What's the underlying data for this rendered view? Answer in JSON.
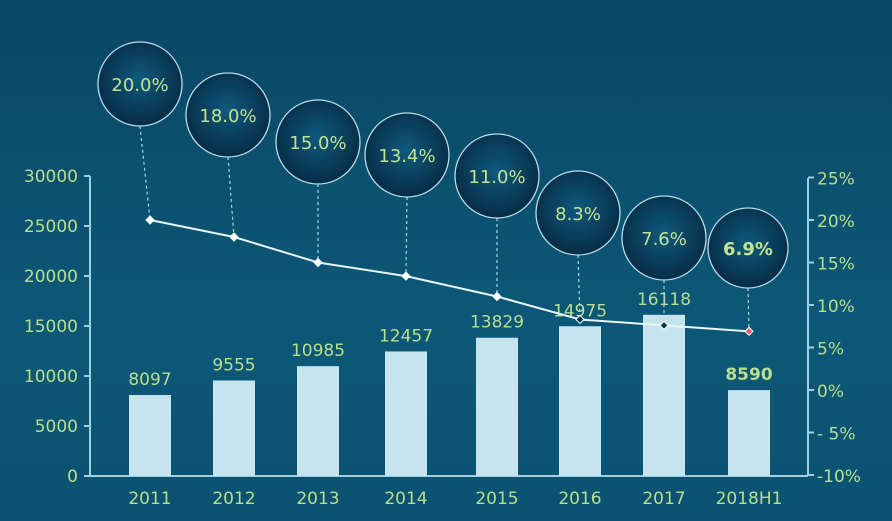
{
  "chart_data": {
    "type": "bar+line",
    "categories": [
      "2011",
      "2012",
      "2013",
      "2014",
      "2015",
      "2016",
      "2017",
      "2018H1"
    ],
    "series": [
      {
        "axis": "left",
        "type": "bar",
        "values": [
          8097,
          9555,
          10985,
          12457,
          13829,
          14975,
          16118,
          8590
        ],
        "labels": [
          "8097",
          "9555",
          "10985",
          "12457",
          "13829",
          "14975",
          "16118",
          "8590"
        ]
      },
      {
        "axis": "right",
        "type": "line",
        "values": [
          20.0,
          18.0,
          15.0,
          13.4,
          11.0,
          8.3,
          7.6,
          6.9
        ],
        "labels": [
          "20.0%",
          "18.0%",
          "15.0%",
          "13.4%",
          "11.0%",
          "8.3%",
          "7.6%",
          "6.9%"
        ]
      }
    ],
    "left_axis": {
      "ylim": [
        0,
        30000
      ],
      "ticks": [
        "0",
        "5000",
        "10000",
        "15000",
        "20000",
        "25000",
        "30000"
      ]
    },
    "right_axis": {
      "ylim": [
        -10,
        25
      ],
      "ticks": [
        "-10%",
        "- 5%",
        "0%",
        "5%",
        "10%",
        "15%",
        "20%",
        "25%"
      ]
    },
    "highlight_last": true,
    "grid": false,
    "colors": {
      "background": "#0b5070",
      "bar": "#c6e4ee",
      "text": "#b9df8c",
      "line": "#e8f4f8",
      "bubble": "#0a3550",
      "highlight_point": "#ff5a6a"
    }
  }
}
